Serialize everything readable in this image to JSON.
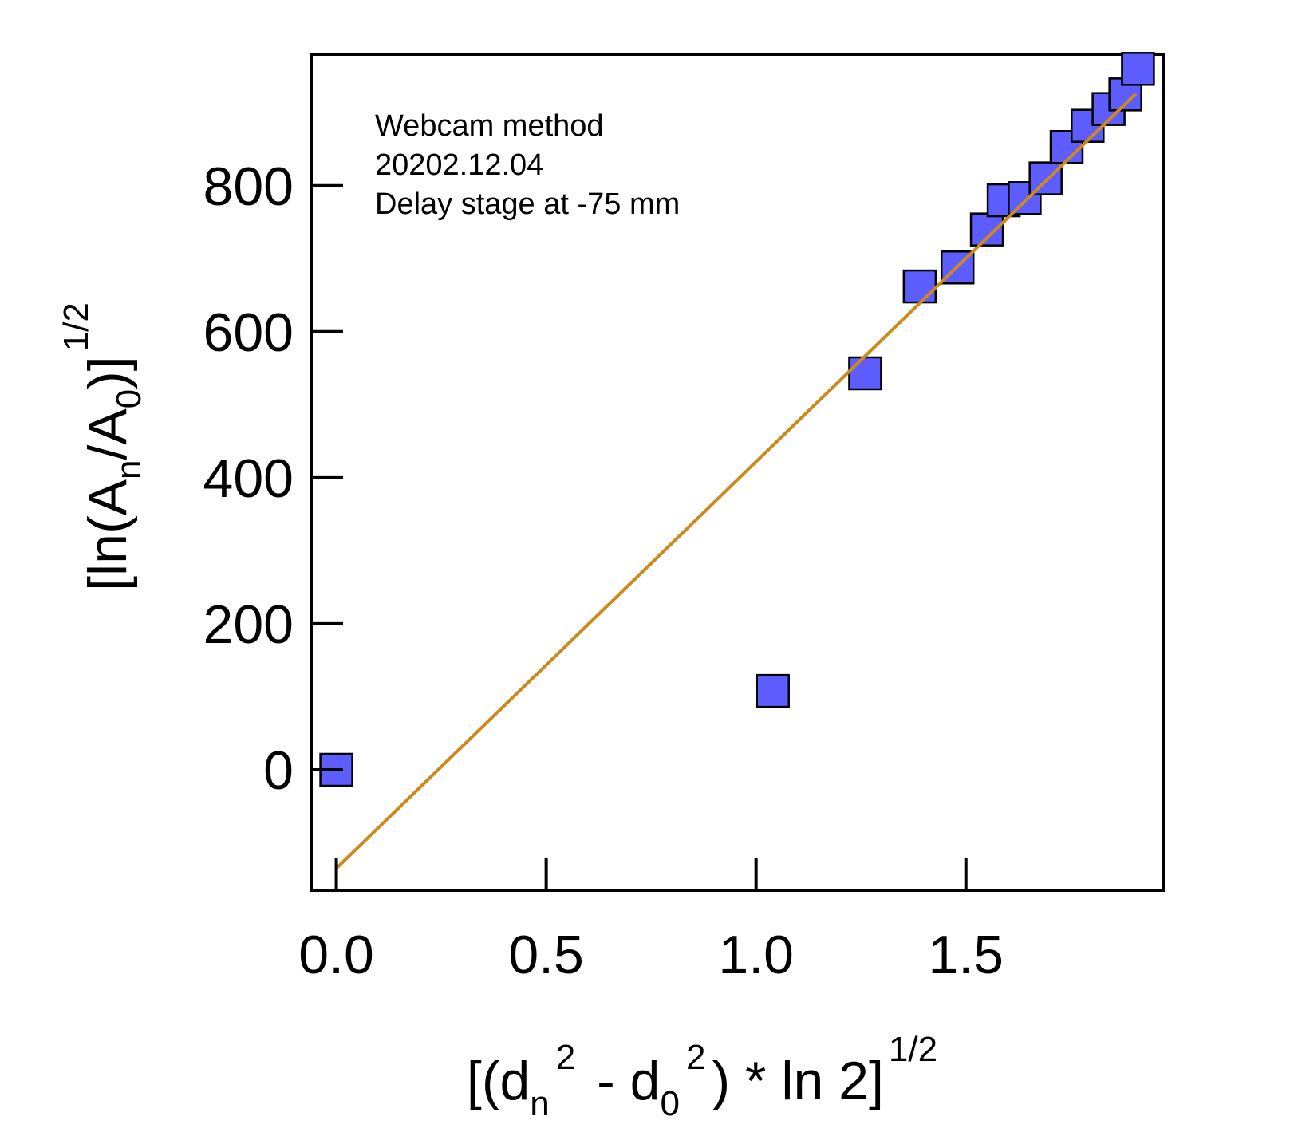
{
  "chart_data": {
    "type": "scatter",
    "title": "",
    "annotation": [
      "Webcam method",
      "20202.12.04",
      "Delay stage at -75 mm"
    ],
    "xlabel": {
      "prefix": "[(d",
      "sub1": "n",
      "sup1": "2",
      "mid": " - d",
      "sub2": "0",
      "sup2": "2",
      "suffix": ") * ln 2]",
      "sup3": "1/2"
    },
    "ylabel": {
      "prefix": "[ln(A",
      "sub1": "n",
      "mid": "/A",
      "sub2": "0",
      "suffix": ")]",
      "sup": "1/2"
    },
    "xlim": [
      -0.06,
      1.97
    ],
    "ylim": [
      -165,
      980
    ],
    "xticks": [
      0.0,
      0.5,
      1.0,
      1.5
    ],
    "xtick_labels": [
      "0.0",
      "0.5",
      "1.0",
      "1.5"
    ],
    "yticks": [
      0,
      200,
      400,
      600,
      800
    ],
    "ytick_labels": [
      "0",
      "200",
      "400",
      "600",
      "800"
    ],
    "grid": false,
    "series": [
      {
        "marker": "square",
        "color": "#5c5cff",
        "edgecolor": "#000000",
        "x": [
          0.0,
          1.04,
          1.26,
          1.39,
          1.48,
          1.55,
          1.59,
          1.64,
          1.69,
          1.74,
          1.79,
          1.84,
          1.88,
          1.91
        ],
        "y": [
          0,
          108,
          543,
          662,
          688,
          740,
          780,
          783,
          810,
          853,
          882,
          905,
          925,
          960
        ]
      }
    ],
    "fit_line": {
      "color": "#cc8a1e",
      "x": [
        0.0,
        1.905
      ],
      "y": [
        -135,
        926
      ]
    }
  }
}
